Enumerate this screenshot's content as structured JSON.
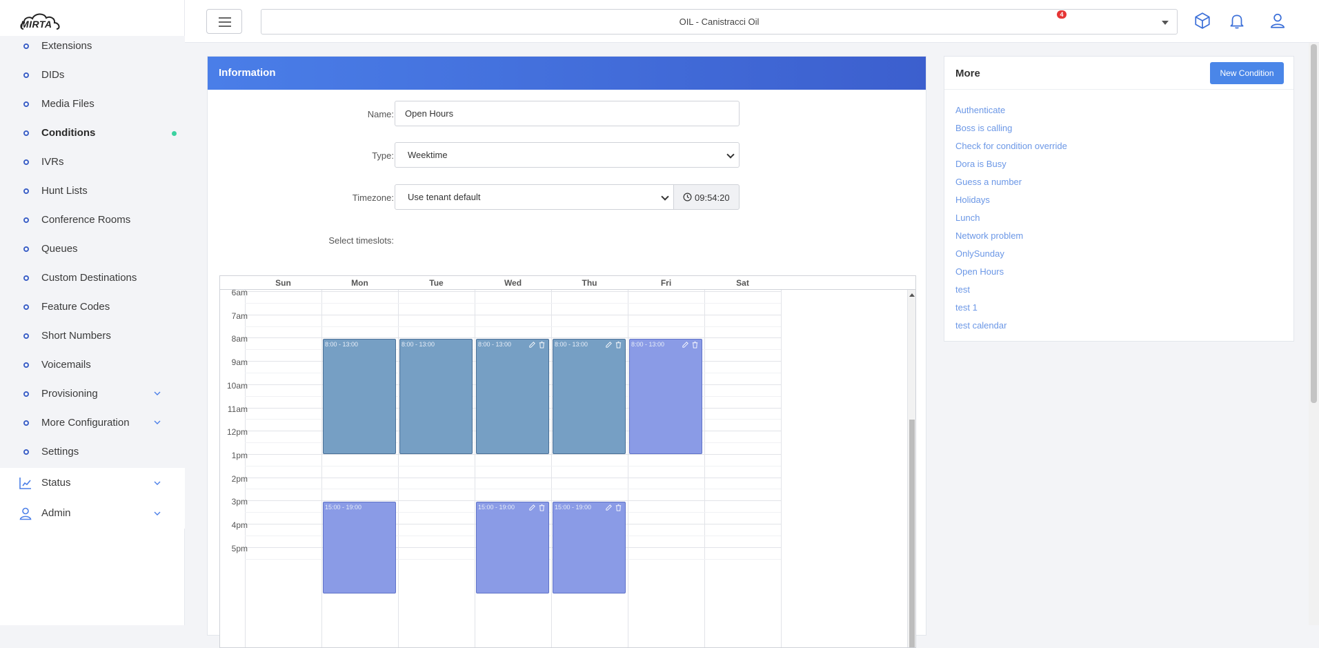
{
  "app": {
    "logo": "MIRTA"
  },
  "sidebar": {
    "sub_items": [
      {
        "label": "Extensions"
      },
      {
        "label": "DIDs"
      },
      {
        "label": "Media Files"
      },
      {
        "label": "Conditions",
        "active": true
      },
      {
        "label": "IVRs"
      },
      {
        "label": "Hunt Lists"
      },
      {
        "label": "Conference Rooms"
      },
      {
        "label": "Queues"
      },
      {
        "label": "Custom Destinations"
      },
      {
        "label": "Feature Codes"
      },
      {
        "label": "Short Numbers"
      },
      {
        "label": "Voicemails"
      },
      {
        "label": "Provisioning",
        "expandable": true
      },
      {
        "label": "More Configuration",
        "expandable": true
      },
      {
        "label": "Settings"
      }
    ],
    "main_items": [
      {
        "label": "Status",
        "icon": "chart-icon"
      },
      {
        "label": "Admin",
        "icon": "user-icon"
      }
    ]
  },
  "topbar": {
    "tenant": "OIL - Canistracci Oil",
    "notifications_count": "4"
  },
  "info": {
    "title": "Information",
    "name_label": "Name:",
    "name_value": "Open Hours",
    "type_label": "Type:",
    "type_value": "Weektime",
    "timezone_label": "Timezone:",
    "timezone_value": "Use tenant default",
    "current_time": "09:54:20",
    "timeslots_label": "Select timeslots:"
  },
  "calendar": {
    "days": [
      "Sun",
      "Mon",
      "Tue",
      "Wed",
      "Thu",
      "Fri",
      "Sat"
    ],
    "hours": [
      "6am",
      "7am",
      "8am",
      "9am",
      "10am",
      "11am",
      "12pm",
      "1pm",
      "2pm",
      "3pm",
      "4pm",
      "5pm"
    ],
    "events": [
      {
        "day": "Mon",
        "label": "8:00 - 13:00",
        "style": "dark",
        "icons": false
      },
      {
        "day": "Tue",
        "label": "8:00 - 13:00",
        "style": "dark",
        "icons": false
      },
      {
        "day": "Wed",
        "label": "8:00 - 13:00",
        "style": "dark",
        "icons": true
      },
      {
        "day": "Thu",
        "label": "8:00 - 13:00",
        "style": "dark",
        "icons": true
      },
      {
        "day": "Fri",
        "label": "8:00 - 13:00",
        "style": "light",
        "icons": true
      },
      {
        "day": "Mon",
        "label": "15:00 - 19:00",
        "style": "light",
        "icons": false
      },
      {
        "day": "Wed",
        "label": "15:00 - 19:00",
        "style": "light",
        "icons": true
      },
      {
        "day": "Thu",
        "label": "15:00 - 19:00",
        "style": "light",
        "icons": true
      }
    ]
  },
  "more": {
    "title": "More",
    "new_button": "New Condition",
    "links": [
      "Authenticate",
      "Boss is calling",
      "Check for condition override",
      "Dora is Busy",
      "Guess a number",
      "Holidays",
      "Lunch",
      "Network problem",
      "OnlySunday",
      "Open Hours",
      "test",
      "test 1",
      "test calendar"
    ]
  },
  "colors": {
    "accent": "#4a86e8",
    "slot_dark": "#769fc4",
    "slot_light": "#8a9be6",
    "link": "#6b97e6"
  }
}
